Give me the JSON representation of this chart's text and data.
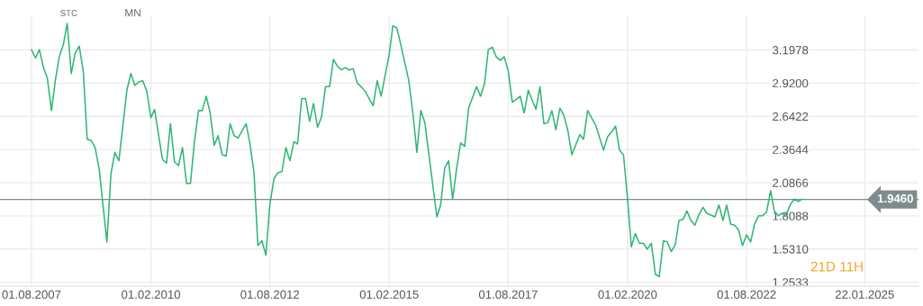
{
  "chart_data": {
    "type": "line",
    "x": [
      "2007-08",
      "2007-09",
      "2007-10",
      "2007-11",
      "2007-12",
      "2008-01",
      "2008-02",
      "2008-03",
      "2008-04",
      "2008-05",
      "2008-06",
      "2008-07",
      "2008-08",
      "2008-09",
      "2008-10",
      "2008-11",
      "2008-12",
      "2009-01",
      "2009-03",
      "2009-04",
      "2009-05",
      "2009-06",
      "2009-08",
      "2009-09",
      "2009-10",
      "2009-11",
      "2009-12",
      "2010-01",
      "2010-02",
      "2010-03",
      "2010-05",
      "2010-06",
      "2010-07",
      "2010-08",
      "2010-09",
      "2010-10",
      "2010-11",
      "2010-12",
      "2011-01",
      "2011-02",
      "2011-03",
      "2011-04",
      "2011-05",
      "2011-06",
      "2011-07",
      "2011-08",
      "2011-09",
      "2011-10",
      "2011-11",
      "2011-12",
      "2012-02",
      "2012-03",
      "2012-04",
      "2012-05",
      "2012-06",
      "2012-07",
      "2012-08",
      "2012-09",
      "2012-10",
      "2012-11",
      "2012-12",
      "2013-01",
      "2013-02",
      "2013-03",
      "2013-04",
      "2013-05",
      "2013-06",
      "2013-07",
      "2013-08",
      "2013-09",
      "2013-10",
      "2013-11",
      "2013-12",
      "2014-01",
      "2014-02",
      "2014-03",
      "2014-04",
      "2014-05",
      "2014-06",
      "2014-07",
      "2014-08",
      "2014-10",
      "2014-11",
      "2014-12",
      "2015-02",
      "2015-03",
      "2015-04",
      "2015-05",
      "2015-07",
      "2015-08",
      "2015-09",
      "2015-10",
      "2015-11",
      "2015-12",
      "2016-02",
      "2016-03",
      "2016-04",
      "2016-05",
      "2016-06",
      "2016-07",
      "2016-08",
      "2016-09",
      "2016-10",
      "2016-12",
      "2017-01",
      "2017-02",
      "2017-03",
      "2017-04",
      "2017-05",
      "2017-06",
      "2017-07",
      "2017-08",
      "2017-09",
      "2017-11",
      "2017-12",
      "2018-01",
      "2018-03",
      "2018-04",
      "2018-05",
      "2018-06",
      "2018-07",
      "2018-08",
      "2018-09",
      "2018-10",
      "2018-11",
      "2018-12",
      "2019-02",
      "2019-03",
      "2019-04",
      "2019-06",
      "2019-08",
      "2019-09",
      "2019-10",
      "2019-11",
      "2019-12",
      "2020-01",
      "2020-02",
      "2020-03",
      "2020-04",
      "2020-05",
      "2020-06",
      "2020-07",
      "2020-08",
      "2020-09",
      "2020-10",
      "2020-11",
      "2020-12",
      "2021-01",
      "2021-02",
      "2021-03",
      "2021-04",
      "2021-05",
      "2021-06",
      "2021-07",
      "2021-08",
      "2021-09",
      "2021-10",
      "2021-12",
      "2022-01",
      "2022-02",
      "2022-03",
      "2022-04",
      "2022-05",
      "2022-06",
      "2022-07",
      "2022-08",
      "2022-09",
      "2022-10",
      "2022-11",
      "2022-12",
      "2023-01",
      "2023-02",
      "2023-03",
      "2023-04",
      "2023-05",
      "2023-06",
      "2023-07",
      "2023-08",
      "2023-09",
      "2023-10"
    ],
    "series": [
      {
        "color": "#2fb673",
        "values": [
          3.2,
          3.13,
          3.2,
          3.05,
          2.96,
          2.69,
          2.95,
          3.14,
          3.24,
          3.42,
          3.0,
          3.17,
          3.23,
          3.02,
          2.45,
          2.44,
          2.38,
          2.2,
          1.59,
          2.16,
          2.34,
          2.27,
          2.86,
          3.0,
          2.9,
          2.93,
          2.94,
          2.85,
          2.63,
          2.7,
          2.28,
          2.25,
          2.58,
          2.26,
          2.23,
          2.38,
          2.08,
          2.08,
          2.43,
          2.69,
          2.69,
          2.81,
          2.67,
          2.4,
          2.48,
          2.32,
          2.31,
          2.58,
          2.48,
          2.46,
          2.58,
          2.41,
          2.17,
          1.56,
          1.6,
          1.48,
          1.91,
          2.12,
          2.17,
          2.18,
          2.38,
          2.27,
          2.43,
          2.41,
          2.79,
          2.79,
          2.6,
          2.75,
          2.55,
          2.64,
          2.89,
          2.89,
          3.12,
          3.06,
          3.03,
          3.05,
          3.03,
          3.04,
          2.92,
          2.89,
          2.85,
          2.73,
          2.94,
          2.81,
          3.16,
          3.4,
          3.38,
          3.24,
          2.94,
          2.67,
          2.34,
          2.69,
          2.59,
          2.33,
          1.8,
          1.9,
          2.21,
          2.27,
          1.95,
          2.2,
          2.42,
          2.39,
          2.71,
          2.89,
          2.81,
          2.92,
          3.2,
          3.22,
          3.14,
          3.11,
          3.14,
          3.02,
          2.76,
          2.81,
          2.67,
          2.86,
          2.7,
          2.89,
          2.58,
          2.59,
          2.69,
          2.53,
          2.71,
          2.65,
          2.52,
          2.32,
          2.49,
          2.45,
          2.69,
          2.57,
          2.36,
          2.47,
          2.51,
          2.56,
          2.36,
          2.32,
          1.95,
          1.55,
          1.66,
          1.58,
          1.58,
          1.53,
          1.58,
          1.32,
          1.3,
          1.6,
          1.59,
          1.51,
          1.57,
          1.77,
          1.78,
          1.85,
          1.77,
          1.73,
          1.82,
          1.88,
          1.83,
          1.8,
          1.9,
          1.77,
          1.9,
          1.74,
          1.73,
          1.69,
          1.56,
          1.65,
          1.59,
          1.74,
          1.81,
          1.81,
          1.84,
          2.02,
          1.85,
          1.81,
          1.83,
          1.82,
          1.9,
          1.95,
          1.93,
          1.95
        ]
      }
    ],
    "xlim": [
      "2006-12-03",
      "2026-03-10"
    ],
    "xticks": [
      {
        "value": "2007-08-01",
        "label": "01.08.2007"
      },
      {
        "value": "2010-02-01",
        "label": "01.02.2010"
      },
      {
        "value": "2012-08-01",
        "label": "01.08.2012"
      },
      {
        "value": "2015-02-01",
        "label": "01.02.2015"
      },
      {
        "value": "2017-08-01",
        "label": "01.08.2017"
      },
      {
        "value": "2020-02-01",
        "label": "01.02.2020"
      },
      {
        "value": "2022-08-01",
        "label": "01.08.2022"
      },
      {
        "value": "2025-01-22",
        "label": "22.01.2025"
      }
    ],
    "ylim": [
      1.22,
      3.48
    ],
    "yticks": [
      1.2533,
      {
        "value": 1.531,
        "label": "1.5310"
      },
      1.8088,
      2.0866,
      2.3644,
      2.6422,
      {
        "value": 2.92,
        "label": "2.9200"
      },
      3.1978
    ],
    "ref_lines": [
      {
        "axis": "y",
        "value": 1.946,
        "label": "1.9460",
        "color": "#7f8c8d"
      }
    ],
    "annotations": [
      "STC",
      "MN",
      "21D 11H"
    ],
    "grid": true,
    "legend": false,
    "marker": "none",
    "line_style": "solid"
  }
}
